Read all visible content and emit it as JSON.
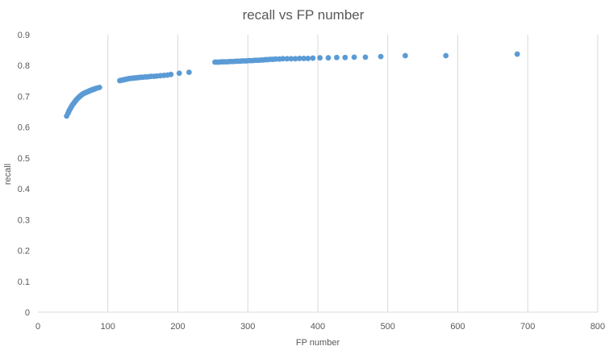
{
  "chart_data": {
    "type": "scatter",
    "title": "recall vs FP number",
    "xlabel": "FP number",
    "ylabel": "recall",
    "xlim": [
      0,
      800
    ],
    "ylim": [
      0,
      0.9
    ],
    "x_ticks": [
      0,
      100,
      200,
      300,
      400,
      500,
      600,
      700,
      800
    ],
    "y_ticks": [
      0,
      0.1,
      0.2,
      0.3,
      0.4,
      0.5,
      0.6,
      0.7,
      0.8,
      0.9
    ],
    "x_tick_labels": [
      "0",
      "100",
      "200",
      "300",
      "400",
      "500",
      "600",
      "700",
      "800"
    ],
    "y_tick_labels": [
      "0",
      "0.1",
      "0.2",
      "0.3",
      "0.4",
      "0.5",
      "0.6",
      "0.7",
      "0.8",
      "0.9"
    ],
    "grid": "vertical",
    "legend": "none",
    "colors": {
      "marker": "#5b9bd5",
      "grid": "#d9d9d9",
      "text": "#595959"
    },
    "series": [
      {
        "x": [
          41,
          43,
          44,
          45,
          46,
          47,
          48,
          49,
          50,
          51,
          52,
          53,
          54,
          55,
          56,
          57,
          58,
          59,
          60,
          61,
          62,
          63,
          64,
          65,
          66,
          67,
          68,
          69,
          70,
          71,
          72,
          73,
          74,
          75,
          76,
          77,
          78,
          79,
          80,
          81,
          82,
          83,
          85,
          88,
          117,
          119,
          121,
          123,
          125,
          127,
          129,
          131,
          133,
          135,
          137,
          139,
          141,
          143,
          145,
          147,
          150,
          153,
          156,
          159,
          162,
          166,
          170,
          175,
          180,
          185,
          190,
          202,
          216,
          253,
          256,
          259,
          262,
          265,
          268,
          271,
          274,
          277,
          280,
          283,
          286,
          289,
          292,
          295,
          298,
          301,
          304,
          307,
          310,
          313,
          316,
          319,
          322,
          325,
          328,
          332,
          336,
          340,
          345,
          350,
          356,
          362,
          368,
          374,
          380,
          386,
          393,
          403,
          415,
          427,
          439,
          452,
          468,
          490,
          525,
          583,
          685
        ],
        "y": [
          0.636,
          0.645,
          0.65,
          0.655,
          0.659,
          0.663,
          0.667,
          0.671,
          0.674,
          0.677,
          0.68,
          0.683,
          0.686,
          0.689,
          0.691,
          0.694,
          0.696,
          0.698,
          0.7,
          0.702,
          0.704,
          0.706,
          0.707,
          0.709,
          0.71,
          0.711,
          0.712,
          0.713,
          0.714,
          0.715,
          0.716,
          0.717,
          0.718,
          0.719,
          0.72,
          0.721,
          0.722,
          0.722,
          0.723,
          0.724,
          0.725,
          0.726,
          0.727,
          0.729,
          0.751,
          0.752,
          0.753,
          0.754,
          0.755,
          0.756,
          0.757,
          0.758,
          0.758,
          0.759,
          0.759,
          0.76,
          0.76,
          0.761,
          0.761,
          0.762,
          0.762,
          0.763,
          0.763,
          0.764,
          0.765,
          0.765,
          0.766,
          0.767,
          0.768,
          0.769,
          0.771,
          0.775,
          0.778,
          0.811,
          0.811,
          0.811,
          0.812,
          0.812,
          0.812,
          0.812,
          0.813,
          0.813,
          0.813,
          0.814,
          0.814,
          0.814,
          0.815,
          0.815,
          0.815,
          0.816,
          0.816,
          0.816,
          0.817,
          0.817,
          0.817,
          0.818,
          0.818,
          0.819,
          0.819,
          0.82,
          0.82,
          0.821,
          0.821,
          0.822,
          0.822,
          0.822,
          0.822,
          0.823,
          0.823,
          0.823,
          0.824,
          0.825,
          0.825,
          0.826,
          0.826,
          0.827,
          0.827,
          0.829,
          0.832,
          0.832,
          0.837
        ]
      }
    ]
  }
}
